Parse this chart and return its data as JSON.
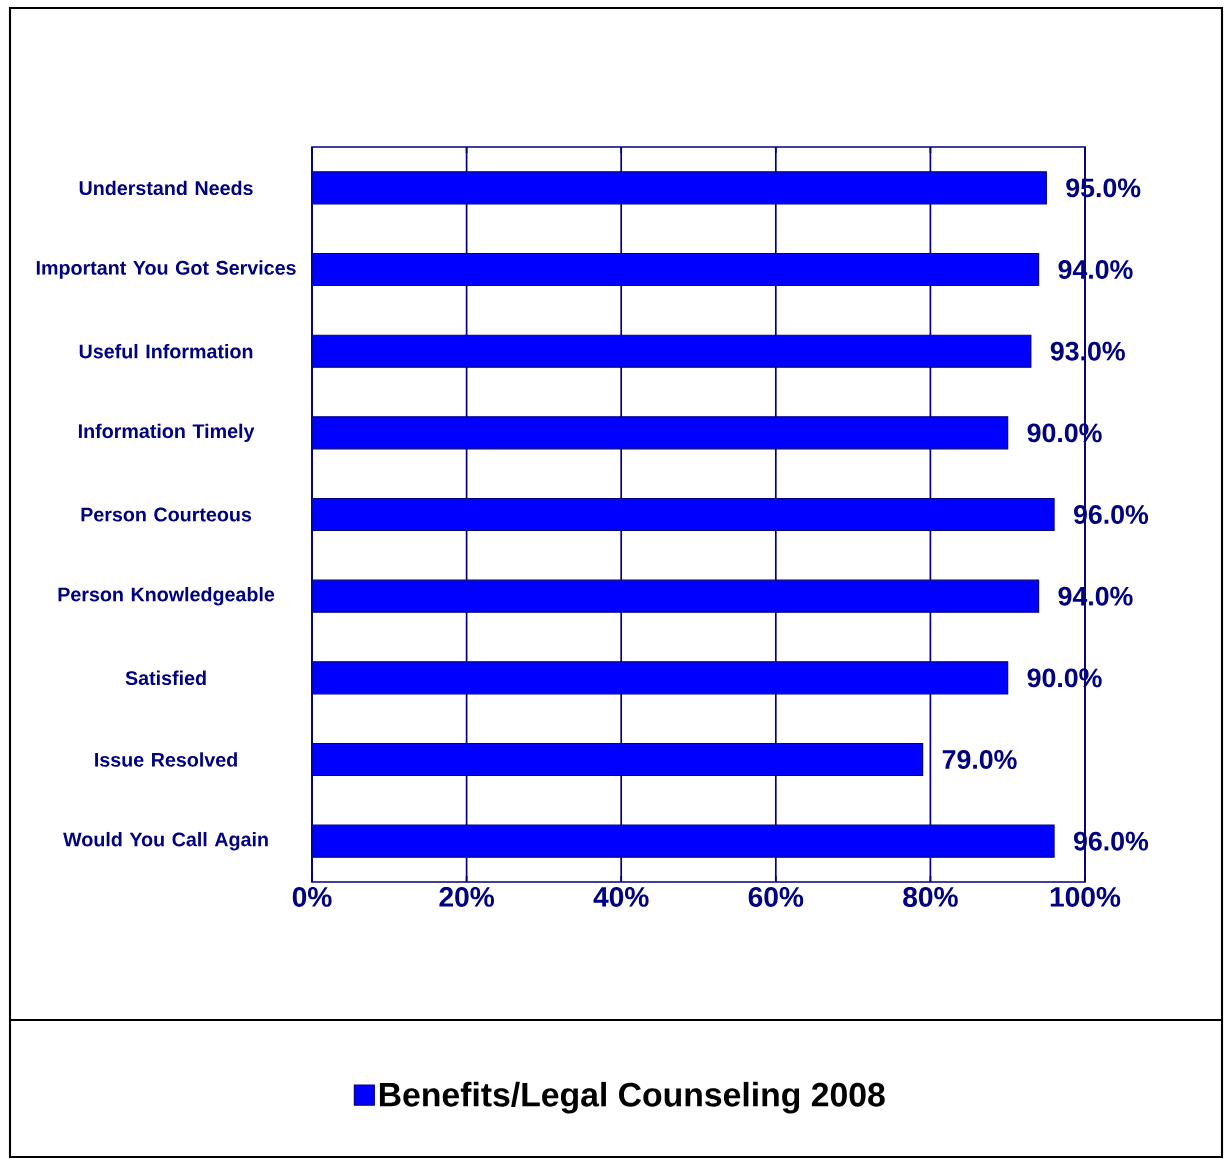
{
  "chart_data": {
    "type": "bar",
    "orientation": "horizontal",
    "categories": [
      "Understand Needs",
      "Important You Got Services",
      "Useful Information",
      "Information Timely",
      "Person Courteous",
      "Person Knowledgeable",
      "Satisfied",
      "Issue Resolved",
      "Would You Call Again"
    ],
    "series": [
      {
        "name": "Benefits/Legal Counseling 2008",
        "color": "#0000ff",
        "values": [
          95,
          94,
          93,
          90,
          96,
          94,
          90,
          79,
          96
        ],
        "value_labels": [
          "95.0%",
          "94.0%",
          "93.0%",
          "90.0%",
          "96.0%",
          "94.0%",
          "90.0%",
          "79.0%",
          "96.0%"
        ]
      }
    ],
    "xlim": [
      0,
      100
    ],
    "xticks": [
      {
        "value": 0,
        "label": "0%"
      },
      {
        "value": 20,
        "label": "20%"
      },
      {
        "value": 40,
        "label": "40%"
      },
      {
        "value": 60,
        "label": "60%"
      },
      {
        "value": 80,
        "label": "80%"
      },
      {
        "value": 100,
        "label": "100%"
      }
    ],
    "grid": "x",
    "legend": "bottom"
  }
}
